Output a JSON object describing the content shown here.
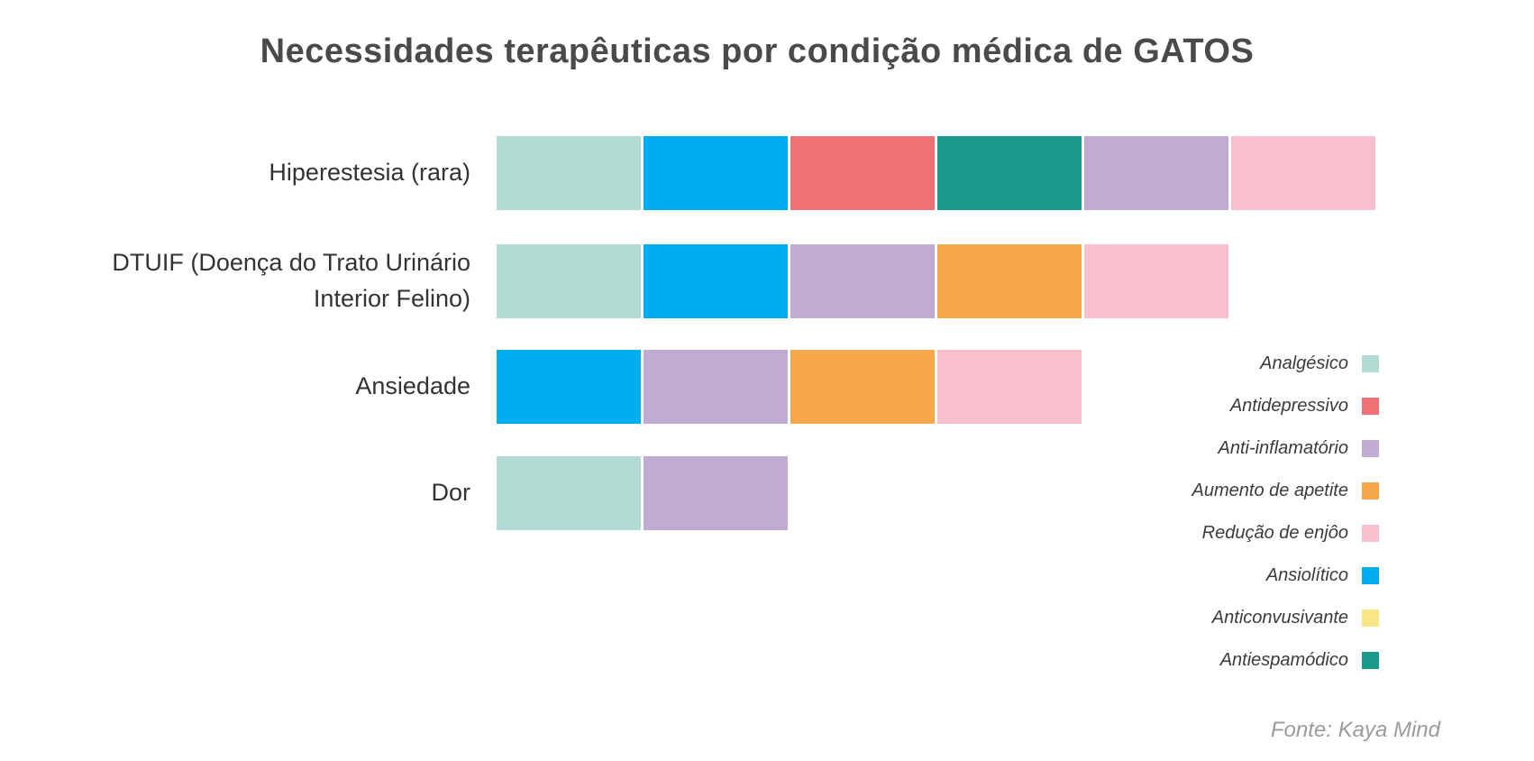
{
  "title": "Necessidades terapêuticas por condição médica de GATOS",
  "source": "Fonte: Kaya Mind",
  "chart_data": {
    "type": "bar",
    "variant": "horizontal-stacked-equal-segments",
    "title": "Necessidades terapêuticas por condição médica de GATOS",
    "categories": [
      "Hiperestesia (rara)",
      "DTUIF (Doença do Trato Urinário Interior Felino)",
      "Ansiedade",
      "Dor"
    ],
    "rows": [
      {
        "label": "Hiperestesia (rara)",
        "segments": [
          "Analgésico",
          "Ansiolítico",
          "Antidepressivo",
          "Antiespamódico",
          "Anti-inflamatório",
          "Redução de enjôo"
        ],
        "count": 6
      },
      {
        "label": "DTUIF (Doença do Trato Urinário Interior Felino)",
        "segments": [
          "Analgésico",
          "Ansiolítico",
          "Anti-inflamatório",
          "Aumento de apetite",
          "Redução de enjôo"
        ],
        "count": 5
      },
      {
        "label": "Ansiedade",
        "segments": [
          "Ansiolítico",
          "Anti-inflamatório",
          "Aumento de apetite",
          "Redução de enjôo"
        ],
        "count": 4
      },
      {
        "label": "Dor",
        "segments": [
          "Analgésico",
          "Anti-inflamatório"
        ],
        "count": 2
      }
    ],
    "legend": [
      {
        "label": "Analgésico",
        "color": "#B2DCD3"
      },
      {
        "label": "Antidepressivo",
        "color": "#F07175"
      },
      {
        "label": "Anti-inflamatório",
        "color": "#C1ABD3"
      },
      {
        "label": "Aumento de apetite",
        "color": "#F6A74A"
      },
      {
        "label": "Redução de enjôo",
        "color": "#F8C0CC"
      },
      {
        "label": "Ansiolítico",
        "color": "#00AEEF"
      },
      {
        "label": "Anticonvusivante",
        "color": "#FAE585"
      },
      {
        "label": "Antiespamódico",
        "color": "#1B9A8C"
      }
    ],
    "legend_position": "right",
    "grid": false,
    "axes_shown": false,
    "segment_value": 1,
    "notes": "Each segment has equal width; chart encodes which therapy classes apply per condition, not magnitudes."
  },
  "colors": {
    "background": "#FFFFFF",
    "title_text": "#4A4A4A",
    "label_text": "#333333",
    "legend_text": "#3B3B3B",
    "source_text": "#9B9B9B"
  }
}
